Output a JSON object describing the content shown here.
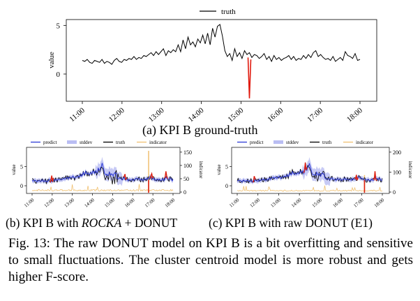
{
  "chart_data": [
    {
      "id": "a",
      "type": "line",
      "title": "",
      "ylabel": "value",
      "yticks": [
        0,
        5
      ],
      "ylim": [
        -2.8,
        5.6
      ],
      "xticks": [
        "11:00",
        "12:00",
        "13:00",
        "14:00",
        "15:00",
        "16:00",
        "17:00",
        "18:00"
      ],
      "legend": [
        "truth"
      ],
      "series": [
        {
          "name": "truth",
          "color": "#000000",
          "y": [
            1.4,
            1.3,
            1.5,
            1.2,
            1.1,
            1.4,
            1.3,
            1.2,
            1.5,
            1.1,
            1.3,
            1.2,
            1.0,
            1.4,
            1.6,
            1.3,
            1.2,
            1.5,
            1.4,
            1.6,
            1.5,
            1.8,
            1.5,
            1.7,
            1.6,
            1.9,
            1.8,
            2.0,
            2.2,
            1.9,
            2.3,
            2.0,
            2.3,
            2.6,
            1.9,
            2.4,
            2.2,
            2.5,
            2.3,
            3.0,
            2.3,
            3.5,
            2.6,
            3.8,
            3.0,
            3.3,
            2.8,
            3.6,
            3.2,
            4.0,
            3.1,
            4.2,
            3.0,
            4.7,
            3.8,
            4.9,
            5.1,
            3.9,
            2.4,
            1.8,
            2.1,
            1.4,
            2.6,
            1.8,
            2.2,
            1.6,
            2.4,
            2.0,
            2.2,
            1.7,
            2.0,
            1.9,
            1.6,
            1.8,
            2.1,
            1.5,
            1.8,
            1.3,
            1.9,
            1.5,
            1.7,
            1.4,
            1.6,
            1.7,
            1.9,
            1.5,
            1.8,
            1.4,
            1.6,
            1.5,
            1.9,
            1.6,
            2.0,
            1.7,
            2.2,
            2.4,
            1.8,
            2.0,
            1.7,
            1.5,
            1.6,
            1.4,
            1.8,
            1.3,
            1.5,
            1.7,
            1.4,
            2.3,
            1.9,
            1.8,
            1.6,
            2.1,
            1.4,
            1.5
          ]
        }
      ],
      "anomalies": [
        {
          "x_index": 68,
          "y": -2.5
        }
      ]
    },
    {
      "id": "b",
      "type": "line",
      "ylabel": "value",
      "y2label": "indicator",
      "yticks": [
        0,
        5
      ],
      "y2ticks": [
        0,
        50,
        100,
        150
      ],
      "xticks": [
        "11:00",
        "12:00",
        "13:00",
        "14:00",
        "15:00",
        "16:00",
        "17:00",
        "18:00"
      ],
      "legend": [
        "predict",
        "stddev",
        "truth",
        "indicator"
      ],
      "colors": {
        "predict": "#2d3ad6",
        "stddev": "#b9bdf3",
        "truth": "#000000",
        "indicator": "#f0c070",
        "anomaly": "#dd2010"
      },
      "anomaly_markers": [
        0.14,
        0.66,
        0.85,
        0.95
      ]
    },
    {
      "id": "c",
      "type": "line",
      "ylabel": "value",
      "y2label": "indicator",
      "yticks": [
        0,
        5
      ],
      "y2ticks": [
        0,
        100,
        200
      ],
      "xticks": [
        "11:00",
        "12:00",
        "13:00",
        "14:00",
        "15:00",
        "16:00",
        "17:00",
        "18:00"
      ],
      "legend": [
        "predict",
        "stddev",
        "truth",
        "indicator"
      ],
      "colors": {
        "predict": "#2d3ad6",
        "stddev": "#b9bdf3",
        "truth": "#000000",
        "indicator": "#f0c070",
        "anomaly": "#dd2010"
      },
      "anomaly_markers": [
        0.12,
        0.47,
        0.82,
        0.95
      ]
    }
  ],
  "captions": {
    "a": "(a) KPI B ground-truth",
    "b_prefix": "(b) KPI B with ",
    "b_em": "ROCKA",
    "b_suffix": " + DONUT",
    "c": "(c) KPI B with raw DONUT (E1)"
  },
  "figure_caption": "Fig. 13: The raw DONUT model on KPI B is a bit overfitting and sensitive to small fluctuations. The cluster centroid model is more robust and gets higher F-score."
}
